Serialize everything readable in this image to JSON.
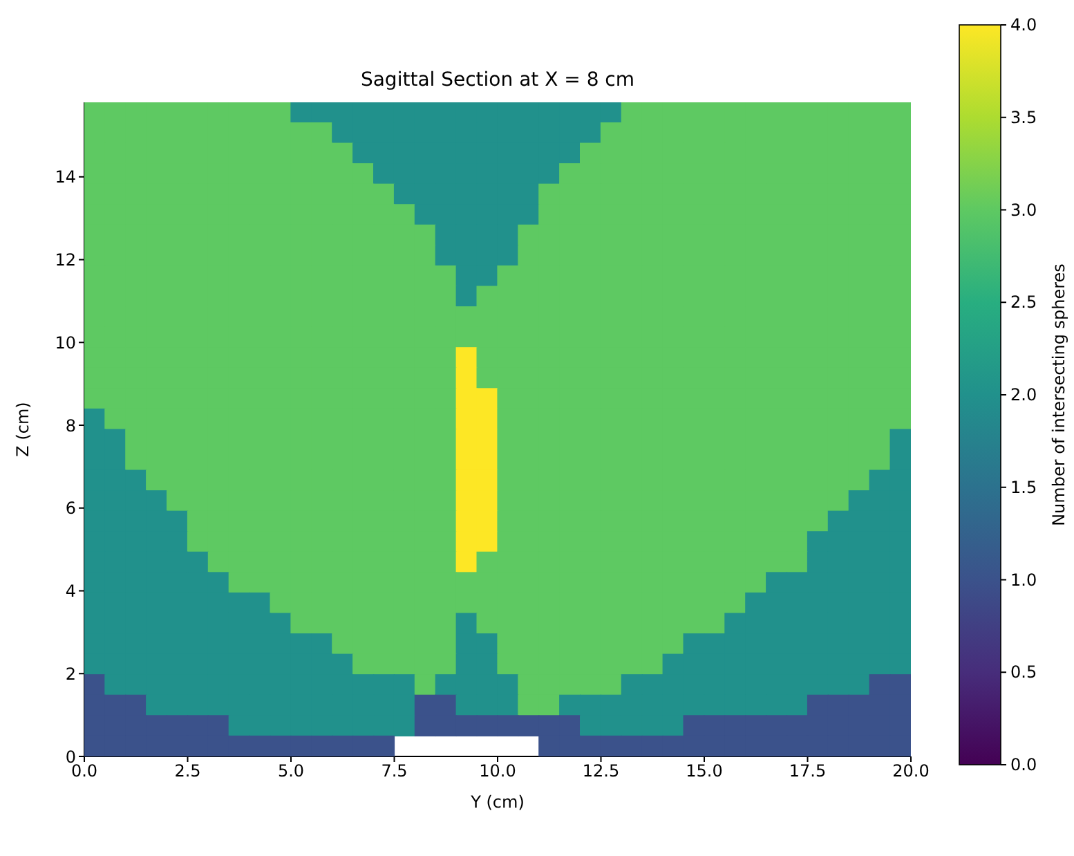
{
  "chart_data": {
    "type": "heatmap",
    "title": "Sagittal Section at X = 8 cm",
    "xlabel": "Y (cm)",
    "ylabel": "Z (cm)",
    "clabel": "Number of intersecting spheres",
    "xlim": [
      0,
      20
    ],
    "ylim": [
      0,
      15.8
    ],
    "xticks": [
      {
        "value": 0,
        "label": "0.0"
      },
      2.5,
      {
        "value": 5,
        "label": "5.0"
      },
      7.5,
      {
        "value": 10,
        "label": "10.0"
      },
      12.5,
      {
        "value": 15,
        "label": "15.0"
      },
      17.5,
      {
        "value": 20,
        "label": "20.0"
      }
    ],
    "yticks": [
      0,
      2,
      4,
      6,
      8,
      10,
      12,
      14
    ],
    "clim": [
      0,
      4
    ],
    "cticks": [
      {
        "value": 0,
        "label": "0.0"
      },
      0.5,
      {
        "value": 1,
        "label": "1.0"
      },
      1.5,
      {
        "value": 2,
        "label": "2.0"
      },
      2.5,
      {
        "value": 3,
        "label": "3.0"
      },
      3.5,
      {
        "value": 4,
        "label": "4.0"
      }
    ],
    "cells": [
      [
        3,
        3,
        3,
        3,
        3,
        3,
        3,
        3,
        3,
        3,
        2,
        2,
        2,
        2,
        2,
        2,
        2,
        2,
        2,
        2,
        2,
        2,
        2,
        2,
        2,
        2,
        3,
        3,
        3,
        3,
        3,
        3,
        3,
        3,
        3,
        3,
        3,
        3,
        3,
        3
      ],
      [
        3,
        3,
        3,
        3,
        3,
        3,
        3,
        3,
        3,
        3,
        3,
        3,
        2,
        2,
        2,
        2,
        2,
        2,
        2,
        2,
        2,
        2,
        2,
        2,
        2,
        3,
        3,
        3,
        3,
        3,
        3,
        3,
        3,
        3,
        3,
        3,
        3,
        3,
        3,
        3
      ],
      [
        3,
        3,
        3,
        3,
        3,
        3,
        3,
        3,
        3,
        3,
        3,
        3,
        3,
        2,
        2,
        2,
        2,
        2,
        2,
        2,
        2,
        2,
        2,
        2,
        3,
        3,
        3,
        3,
        3,
        3,
        3,
        3,
        3,
        3,
        3,
        3,
        3,
        3,
        3,
        3
      ],
      [
        3,
        3,
        3,
        3,
        3,
        3,
        3,
        3,
        3,
        3,
        3,
        3,
        3,
        3,
        2,
        2,
        2,
        2,
        2,
        2,
        2,
        2,
        2,
        3,
        3,
        3,
        3,
        3,
        3,
        3,
        3,
        3,
        3,
        3,
        3,
        3,
        3,
        3,
        3,
        3
      ],
      [
        3,
        3,
        3,
        3,
        3,
        3,
        3,
        3,
        3,
        3,
        3,
        3,
        3,
        3,
        3,
        2,
        2,
        2,
        2,
        2,
        2,
        2,
        3,
        3,
        3,
        3,
        3,
        3,
        3,
        3,
        3,
        3,
        3,
        3,
        3,
        3,
        3,
        3,
        3,
        3
      ],
      [
        3,
        3,
        3,
        3,
        3,
        3,
        3,
        3,
        3,
        3,
        3,
        3,
        3,
        3,
        3,
        3,
        2,
        2,
        2,
        2,
        2,
        2,
        3,
        3,
        3,
        3,
        3,
        3,
        3,
        3,
        3,
        3,
        3,
        3,
        3,
        3,
        3,
        3,
        3,
        3
      ],
      [
        3,
        3,
        3,
        3,
        3,
        3,
        3,
        3,
        3,
        3,
        3,
        3,
        3,
        3,
        3,
        3,
        3,
        2,
        2,
        2,
        2,
        3,
        3,
        3,
        3,
        3,
        3,
        3,
        3,
        3,
        3,
        3,
        3,
        3,
        3,
        3,
        3,
        3,
        3,
        3
      ],
      [
        3,
        3,
        3,
        3,
        3,
        3,
        3,
        3,
        3,
        3,
        3,
        3,
        3,
        3,
        3,
        3,
        3,
        2,
        2,
        2,
        2,
        3,
        3,
        3,
        3,
        3,
        3,
        3,
        3,
        3,
        3,
        3,
        3,
        3,
        3,
        3,
        3,
        3,
        3,
        3
      ],
      [
        3,
        3,
        3,
        3,
        3,
        3,
        3,
        3,
        3,
        3,
        3,
        3,
        3,
        3,
        3,
        3,
        3,
        3,
        2,
        2,
        3,
        3,
        3,
        3,
        3,
        3,
        3,
        3,
        3,
        3,
        3,
        3,
        3,
        3,
        3,
        3,
        3,
        3,
        3,
        3
      ],
      [
        3,
        3,
        3,
        3,
        3,
        3,
        3,
        3,
        3,
        3,
        3,
        3,
        3,
        3,
        3,
        3,
        3,
        3,
        2,
        3,
        3,
        3,
        3,
        3,
        3,
        3,
        3,
        3,
        3,
        3,
        3,
        3,
        3,
        3,
        3,
        3,
        3,
        3,
        3,
        3
      ],
      [
        3,
        3,
        3,
        3,
        3,
        3,
        3,
        3,
        3,
        3,
        3,
        3,
        3,
        3,
        3,
        3,
        3,
        3,
        3,
        3,
        3,
        3,
        3,
        3,
        3,
        3,
        3,
        3,
        3,
        3,
        3,
        3,
        3,
        3,
        3,
        3,
        3,
        3,
        3,
        3
      ],
      [
        3,
        3,
        3,
        3,
        3,
        3,
        3,
        3,
        3,
        3,
        3,
        3,
        3,
        3,
        3,
        3,
        3,
        3,
        3,
        3,
        3,
        3,
        3,
        3,
        3,
        3,
        3,
        3,
        3,
        3,
        3,
        3,
        3,
        3,
        3,
        3,
        3,
        3,
        3,
        3
      ],
      [
        3,
        3,
        3,
        3,
        3,
        3,
        3,
        3,
        3,
        3,
        3,
        3,
        3,
        3,
        3,
        3,
        3,
        3,
        4,
        3,
        3,
        3,
        3,
        3,
        3,
        3,
        3,
        3,
        3,
        3,
        3,
        3,
        3,
        3,
        3,
        3,
        3,
        3,
        3,
        3
      ],
      [
        3,
        3,
        3,
        3,
        3,
        3,
        3,
        3,
        3,
        3,
        3,
        3,
        3,
        3,
        3,
        3,
        3,
        3,
        4,
        3,
        3,
        3,
        3,
        3,
        3,
        3,
        3,
        3,
        3,
        3,
        3,
        3,
        3,
        3,
        3,
        3,
        3,
        3,
        3,
        3
      ],
      [
        3,
        3,
        3,
        3,
        3,
        3,
        3,
        3,
        3,
        3,
        3,
        3,
        3,
        3,
        3,
        3,
        3,
        3,
        4,
        4,
        3,
        3,
        3,
        3,
        3,
        3,
        3,
        3,
        3,
        3,
        3,
        3,
        3,
        3,
        3,
        3,
        3,
        3,
        3,
        3
      ],
      [
        2,
        3,
        3,
        3,
        3,
        3,
        3,
        3,
        3,
        3,
        3,
        3,
        3,
        3,
        3,
        3,
        3,
        3,
        4,
        4,
        3,
        3,
        3,
        3,
        3,
        3,
        3,
        3,
        3,
        3,
        3,
        3,
        3,
        3,
        3,
        3,
        3,
        3,
        3,
        3
      ],
      [
        2,
        2,
        3,
        3,
        3,
        3,
        3,
        3,
        3,
        3,
        3,
        3,
        3,
        3,
        3,
        3,
        3,
        3,
        4,
        4,
        3,
        3,
        3,
        3,
        3,
        3,
        3,
        3,
        3,
        3,
        3,
        3,
        3,
        3,
        3,
        3,
        3,
        3,
        3,
        2
      ],
      [
        2,
        2,
        3,
        3,
        3,
        3,
        3,
        3,
        3,
        3,
        3,
        3,
        3,
        3,
        3,
        3,
        3,
        3,
        4,
        4,
        3,
        3,
        3,
        3,
        3,
        3,
        3,
        3,
        3,
        3,
        3,
        3,
        3,
        3,
        3,
        3,
        3,
        3,
        3,
        2
      ],
      [
        2,
        2,
        2,
        3,
        3,
        3,
        3,
        3,
        3,
        3,
        3,
        3,
        3,
        3,
        3,
        3,
        3,
        3,
        4,
        4,
        3,
        3,
        3,
        3,
        3,
        3,
        3,
        3,
        3,
        3,
        3,
        3,
        3,
        3,
        3,
        3,
        3,
        3,
        2,
        2
      ],
      [
        2,
        2,
        2,
        2,
        3,
        3,
        3,
        3,
        3,
        3,
        3,
        3,
        3,
        3,
        3,
        3,
        3,
        3,
        4,
        4,
        3,
        3,
        3,
        3,
        3,
        3,
        3,
        3,
        3,
        3,
        3,
        3,
        3,
        3,
        3,
        3,
        3,
        2,
        2,
        2
      ],
      [
        2,
        2,
        2,
        2,
        2,
        3,
        3,
        3,
        3,
        3,
        3,
        3,
        3,
        3,
        3,
        3,
        3,
        3,
        4,
        4,
        3,
        3,
        3,
        3,
        3,
        3,
        3,
        3,
        3,
        3,
        3,
        3,
        3,
        3,
        3,
        3,
        2,
        2,
        2,
        2
      ],
      [
        2,
        2,
        2,
        2,
        2,
        3,
        3,
        3,
        3,
        3,
        3,
        3,
        3,
        3,
        3,
        3,
        3,
        3,
        4,
        4,
        3,
        3,
        3,
        3,
        3,
        3,
        3,
        3,
        3,
        3,
        3,
        3,
        3,
        3,
        3,
        2,
        2,
        2,
        2,
        2
      ],
      [
        2,
        2,
        2,
        2,
        2,
        2,
        3,
        3,
        3,
        3,
        3,
        3,
        3,
        3,
        3,
        3,
        3,
        3,
        4,
        3,
        3,
        3,
        3,
        3,
        3,
        3,
        3,
        3,
        3,
        3,
        3,
        3,
        3,
        3,
        3,
        2,
        2,
        2,
        2,
        2
      ],
      [
        2,
        2,
        2,
        2,
        2,
        2,
        2,
        3,
        3,
        3,
        3,
        3,
        3,
        3,
        3,
        3,
        3,
        3,
        3,
        3,
        3,
        3,
        3,
        3,
        3,
        3,
        3,
        3,
        3,
        3,
        3,
        3,
        3,
        2,
        2,
        2,
        2,
        2,
        2,
        2
      ],
      [
        2,
        2,
        2,
        2,
        2,
        2,
        2,
        2,
        2,
        3,
        3,
        3,
        3,
        3,
        3,
        3,
        3,
        3,
        3,
        3,
        3,
        3,
        3,
        3,
        3,
        3,
        3,
        3,
        3,
        3,
        3,
        3,
        2,
        2,
        2,
        2,
        2,
        2,
        2,
        2
      ],
      [
        2,
        2,
        2,
        2,
        2,
        2,
        2,
        2,
        2,
        2,
        3,
        3,
        3,
        3,
        3,
        3,
        3,
        3,
        2,
        3,
        3,
        3,
        3,
        3,
        3,
        3,
        3,
        3,
        3,
        3,
        3,
        2,
        2,
        2,
        2,
        2,
        2,
        2,
        2,
        2
      ],
      [
        2,
        2,
        2,
        2,
        2,
        2,
        2,
        2,
        2,
        2,
        2,
        2,
        3,
        3,
        3,
        3,
        3,
        3,
        2,
        2,
        3,
        3,
        3,
        3,
        3,
        3,
        3,
        3,
        3,
        2,
        2,
        2,
        2,
        2,
        2,
        2,
        2,
        2,
        2,
        2
      ],
      [
        2,
        2,
        2,
        2,
        2,
        2,
        2,
        2,
        2,
        2,
        2,
        2,
        2,
        3,
        3,
        3,
        3,
        3,
        2,
        2,
        3,
        3,
        3,
        3,
        3,
        3,
        3,
        3,
        2,
        2,
        2,
        2,
        2,
        2,
        2,
        2,
        2,
        2,
        2,
        2
      ],
      [
        1,
        2,
        2,
        2,
        2,
        2,
        2,
        2,
        2,
        2,
        2,
        2,
        2,
        2,
        2,
        2,
        3,
        2,
        2,
        2,
        2,
        3,
        3,
        3,
        3,
        3,
        2,
        2,
        2,
        2,
        2,
        2,
        2,
        2,
        2,
        2,
        2,
        2,
        1,
        1
      ],
      [
        1,
        1,
        1,
        2,
        2,
        2,
        2,
        2,
        2,
        2,
        2,
        2,
        2,
        2,
        2,
        2,
        1,
        1,
        2,
        2,
        2,
        3,
        3,
        2,
        2,
        2,
        2,
        2,
        2,
        2,
        2,
        2,
        2,
        2,
        2,
        1,
        1,
        1,
        1,
        1
      ],
      [
        1,
        1,
        1,
        1,
        1,
        1,
        1,
        2,
        2,
        2,
        2,
        2,
        2,
        2,
        2,
        2,
        1,
        1,
        1,
        1,
        1,
        1,
        1,
        1,
        2,
        2,
        2,
        2,
        2,
        1,
        1,
        1,
        1,
        1,
        1,
        1,
        1,
        1,
        1,
        1
      ],
      [
        1,
        1,
        1,
        1,
        1,
        1,
        1,
        1,
        1,
        1,
        1,
        1,
        1,
        1,
        1,
        null,
        null,
        null,
        null,
        null,
        null,
        null,
        1,
        1,
        1,
        1,
        1,
        1,
        1,
        1,
        1,
        1,
        1,
        1,
        1,
        1,
        1,
        1,
        1,
        1
      ]
    ]
  }
}
